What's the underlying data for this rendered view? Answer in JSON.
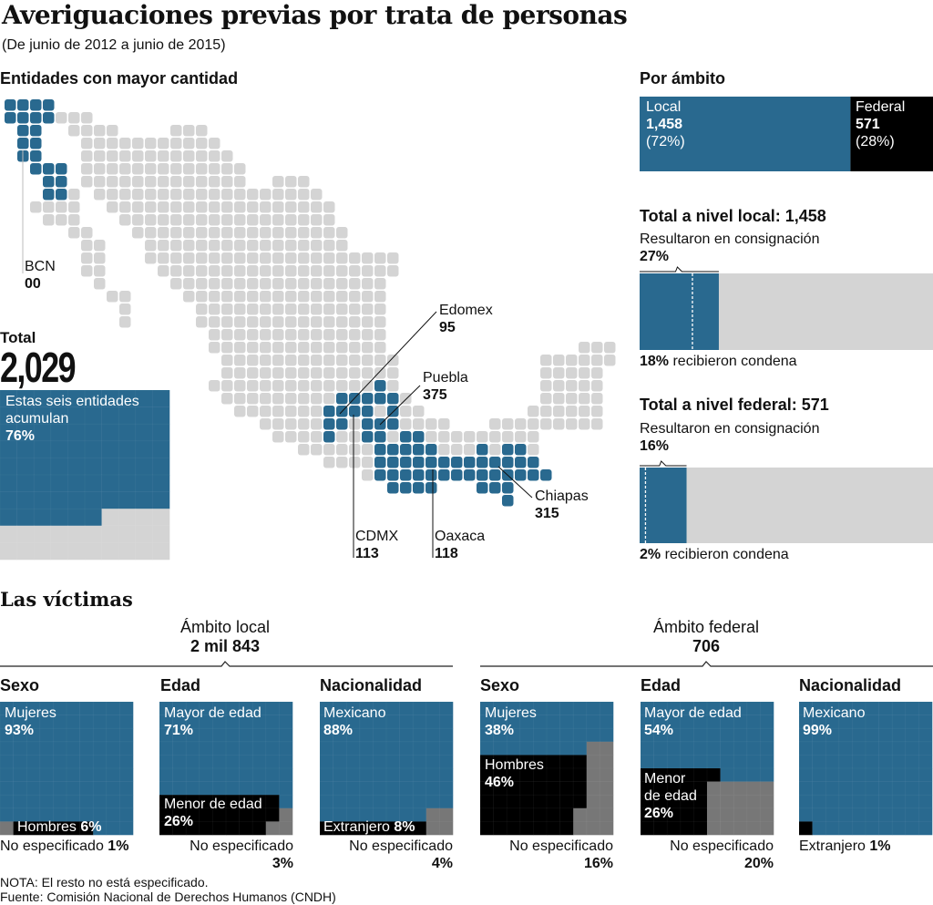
{
  "header": {
    "title": "Averiguaciones previas por trata de personas",
    "subtitle": "(De junio de 2012 a junio de 2015)"
  },
  "map": {
    "heading": "Entidades con mayor cantidad",
    "labels": [
      {
        "name": "BCN",
        "value": "00"
      },
      {
        "name": "Edomex",
        "value": "95"
      },
      {
        "name": "Puebla",
        "value": "375"
      },
      {
        "name": "Chiapas",
        "value": "315"
      },
      {
        "name": "CDMX",
        "value": "113"
      },
      {
        "name": "Oaxaca",
        "value": "118"
      }
    ]
  },
  "total": {
    "label": "Total",
    "value": "2,029",
    "box_line1": "Estas seis entidades",
    "box_line2": "acumulan",
    "box_pct": "76%"
  },
  "ambito": {
    "heading": "Por ámbito",
    "local": {
      "label": "Local",
      "value": "1,458",
      "pct": "(72%)"
    },
    "federal": {
      "label": "Federal",
      "value": "571",
      "pct": "(28%)"
    }
  },
  "nivel_local": {
    "heading": "Total a nivel local: 1,458",
    "consign_label": "Resultaron en consignación",
    "consign_pct": "27%",
    "condena_pct": "18%",
    "condena_label": " recibieron condena"
  },
  "nivel_federal": {
    "heading": "Total a nivel federal: 571",
    "consign_label": "Resultaron en consignación",
    "consign_pct": "16%",
    "condena_pct": "2%",
    "condena_label": " recibieron condena"
  },
  "victimas": {
    "heading": "Las víctimas",
    "local": {
      "title": "Ámbito local",
      "total": "2 mil 843",
      "sexo": {
        "heading": "Sexo",
        "main_label": "Mujeres",
        "main_pct": "93%",
        "second_label": "Hombres ",
        "second_pct": "6%",
        "ne_label": "No especificado ",
        "ne_pct": "1%"
      },
      "edad": {
        "heading": "Edad",
        "main_label": "Mayor de edad",
        "main_pct": "71%",
        "second_label": "Menor de edad",
        "second_pct": "26%",
        "ne_label": "No especificado",
        "ne_pct": "3%"
      },
      "nacionalidad": {
        "heading": "Nacionalidad",
        "main_label": "Mexicano",
        "main_pct": "88%",
        "second_label": "Extranjero ",
        "second_pct": "8%",
        "ne_label": "No especificado",
        "ne_pct": "4%"
      }
    },
    "federal": {
      "title": "Ámbito federal",
      "total": "706",
      "sexo": {
        "heading": "Sexo",
        "main_label": "Mujeres",
        "main_pct": "38%",
        "second_label": "Hombres",
        "second_pct": "46%",
        "ne_label": "No especificado",
        "ne_pct": "16%"
      },
      "edad": {
        "heading": "Edad",
        "main_label": "Mayor de edad",
        "main_pct": "54%",
        "second_label_1": "Menor",
        "second_label_2": "de edad",
        "second_pct": "26%",
        "ne_label": "No especificado",
        "ne_pct": "20%"
      },
      "nacionalidad": {
        "heading": "Nacionalidad",
        "main_label": "Mexicano",
        "main_pct": "99%",
        "second_label": "Extranjero ",
        "second_pct": "1%"
      }
    }
  },
  "footer": {
    "note": "NOTA: El resto no está especificado.",
    "source": "Fuente: Comisión Nacional de Derechos Humanos (CNDH)"
  },
  "colors": {
    "blue": "#29698f",
    "black": "#000000",
    "dark_gray": "#777777",
    "light_gray": "#d4d4d4"
  },
  "chart_data": [
    {
      "type": "bar",
      "title": "Por ámbito",
      "categories": [
        "Local",
        "Federal"
      ],
      "values": [
        1458,
        571
      ],
      "percent": [
        72,
        28
      ],
      "stacked": true
    },
    {
      "type": "bar",
      "title": "Total a nivel local: 1,458",
      "series": [
        {
          "name": "Resultaron en consignación",
          "value": 27
        },
        {
          "name": "recibieron condena",
          "value": 18
        }
      ],
      "unit": "%"
    },
    {
      "type": "bar",
      "title": "Total a nivel federal: 571",
      "series": [
        {
          "name": "Resultaron en consignación",
          "value": 16
        },
        {
          "name": "recibieron condena",
          "value": 2
        }
      ],
      "unit": "%"
    },
    {
      "type": "waffle",
      "title": "Total",
      "total": 2029,
      "values": [
        {
          "name": "Estas seis entidades acumulan",
          "value": 76
        }
      ]
    },
    {
      "type": "waffle",
      "group": "Ámbito local",
      "title": "Sexo",
      "values": [
        {
          "name": "Mujeres",
          "value": 93
        },
        {
          "name": "Hombres",
          "value": 6
        },
        {
          "name": "No especificado",
          "value": 1
        }
      ]
    },
    {
      "type": "waffle",
      "group": "Ámbito local",
      "title": "Edad",
      "values": [
        {
          "name": "Mayor de edad",
          "value": 71
        },
        {
          "name": "Menor de edad",
          "value": 26
        },
        {
          "name": "No especificado",
          "value": 3
        }
      ]
    },
    {
      "type": "waffle",
      "group": "Ámbito local",
      "title": "Nacionalidad",
      "values": [
        {
          "name": "Mexicano",
          "value": 88
        },
        {
          "name": "Extranjero",
          "value": 8
        },
        {
          "name": "No especificado",
          "value": 4
        }
      ]
    },
    {
      "type": "waffle",
      "group": "Ámbito federal",
      "title": "Sexo",
      "values": [
        {
          "name": "Mujeres",
          "value": 38
        },
        {
          "name": "Hombres",
          "value": 46
        },
        {
          "name": "No especificado",
          "value": 16
        }
      ]
    },
    {
      "type": "waffle",
      "group": "Ámbito federal",
      "title": "Edad",
      "values": [
        {
          "name": "Mayor de edad",
          "value": 54
        },
        {
          "name": "Menor de edad",
          "value": 26
        },
        {
          "name": "No especificado",
          "value": 20
        }
      ]
    },
    {
      "type": "waffle",
      "group": "Ámbito federal",
      "title": "Nacionalidad",
      "values": [
        {
          "name": "Mexicano",
          "value": 99
        },
        {
          "name": "Extranjero",
          "value": 1
        }
      ]
    },
    {
      "type": "tile-map",
      "title": "Entidades con mayor cantidad",
      "values": [
        {
          "name": "BCN",
          "value": 0
        },
        {
          "name": "Edomex",
          "value": 95
        },
        {
          "name": "Puebla",
          "value": 375
        },
        {
          "name": "Chiapas",
          "value": 315
        },
        {
          "name": "CDMX",
          "value": 113
        },
        {
          "name": "Oaxaca",
          "value": 118
        }
      ]
    }
  ]
}
